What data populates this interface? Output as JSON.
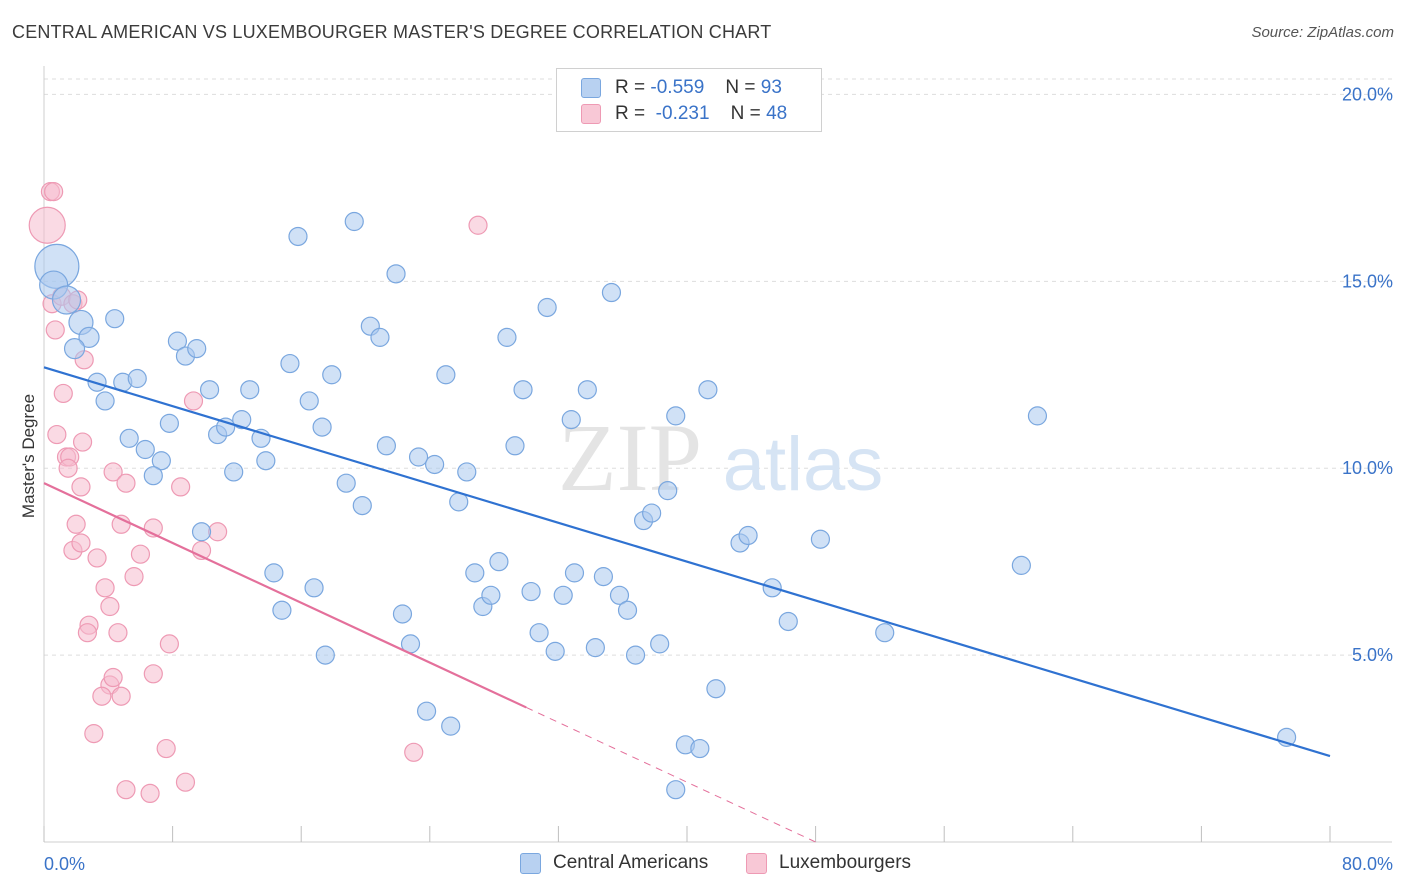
{
  "title": "CENTRAL AMERICAN VS LUXEMBOURGER MASTER'S DEGREE CORRELATION CHART",
  "source": "Source: ZipAtlas.com",
  "watermark": {
    "zip": "ZIP",
    "atlas": "atlas"
  },
  "colors": {
    "blue_fill": "#a9c8ee",
    "blue_stroke": "#7aa7df",
    "blue_line": "#2f72d1",
    "pink_fill": "#f6bccd",
    "pink_stroke": "#ee9ab4",
    "pink_line": "#e4709b",
    "axis_label": "#3a73c8",
    "grid": "#dddddd"
  },
  "legend": {
    "rows": [
      {
        "r_label": "R =",
        "r_value": "-0.559",
        "n_label": "N =",
        "n_value": "93",
        "color": "blue"
      },
      {
        "r_label": "R =",
        "r_value": "-0.231",
        "n_label": "N =",
        "n_value": "48",
        "color": "pink"
      }
    ]
  },
  "bottom_legend": [
    {
      "label": "Central Americans",
      "color": "blue"
    },
    {
      "label": "Luxembourgers",
      "color": "pink"
    }
  ],
  "chart_data": {
    "type": "scatter",
    "ylabel": "Master's Degree",
    "xlim": [
      0,
      80
    ],
    "ylim": [
      0,
      20.6
    ],
    "x_tick_labels": [
      {
        "value": 0,
        "label": "0.0%"
      },
      {
        "value": 80,
        "label": "80.0%"
      }
    ],
    "y_tick_labels": [
      {
        "value": 5,
        "label": "5.0%"
      },
      {
        "value": 10,
        "label": "10.0%"
      },
      {
        "value": 15,
        "label": "15.0%"
      },
      {
        "value": 20,
        "label": "20.0%"
      }
    ],
    "x_minor_ticks": [
      0,
      8,
      16,
      24,
      32,
      40,
      48,
      56,
      64,
      72,
      80
    ],
    "series": [
      {
        "name": "Central Americans",
        "color": "blue",
        "trend": {
          "x0": 0,
          "y0": 12.7,
          "x1": 80,
          "y1": 2.3
        },
        "points": [
          [
            0.8,
            15.4,
            22
          ],
          [
            0.6,
            14.9,
            14
          ],
          [
            1.4,
            14.5,
            14
          ],
          [
            2.3,
            13.9,
            12
          ],
          [
            2.8,
            13.5,
            10
          ],
          [
            1.9,
            13.2,
            10
          ],
          [
            4.4,
            14.0,
            9
          ],
          [
            3.3,
            12.3,
            9
          ],
          [
            4.9,
            12.3,
            9
          ],
          [
            5.8,
            12.4,
            9
          ],
          [
            3.8,
            11.8,
            9
          ],
          [
            5.3,
            10.8,
            9
          ],
          [
            6.3,
            10.5,
            9
          ],
          [
            7.3,
            10.2,
            9
          ],
          [
            6.8,
            9.8,
            9
          ],
          [
            7.8,
            11.2,
            9
          ],
          [
            8.3,
            13.4,
            9
          ],
          [
            8.8,
            13.0,
            9
          ],
          [
            9.5,
            13.2,
            9
          ],
          [
            10.3,
            12.1,
            9
          ],
          [
            10.8,
            10.9,
            9
          ],
          [
            11.3,
            11.1,
            9
          ],
          [
            11.8,
            9.9,
            9
          ],
          [
            12.3,
            11.3,
            9
          ],
          [
            12.8,
            12.1,
            9
          ],
          [
            13.5,
            10.8,
            9
          ],
          [
            13.8,
            10.2,
            9
          ],
          [
            9.8,
            8.3,
            9
          ],
          [
            14.3,
            7.2,
            9
          ],
          [
            14.8,
            6.2,
            9
          ],
          [
            15.3,
            12.8,
            9
          ],
          [
            15.8,
            16.2,
            9
          ],
          [
            16.5,
            11.8,
            9
          ],
          [
            17.3,
            11.1,
            9
          ],
          [
            16.8,
            6.8,
            9
          ],
          [
            17.9,
            12.5,
            9
          ],
          [
            18.8,
            9.6,
            9
          ],
          [
            19.3,
            16.6,
            9
          ],
          [
            19.8,
            9.0,
            9
          ],
          [
            20.3,
            13.8,
            9
          ],
          [
            20.9,
            13.5,
            9
          ],
          [
            21.3,
            10.6,
            9
          ],
          [
            21.9,
            15.2,
            9
          ],
          [
            22.3,
            6.1,
            9
          ],
          [
            22.8,
            5.3,
            9
          ],
          [
            23.3,
            10.3,
            9
          ],
          [
            24.3,
            10.1,
            9
          ],
          [
            25.0,
            12.5,
            9
          ],
          [
            25.8,
            9.1,
            9
          ],
          [
            26.3,
            9.9,
            9
          ],
          [
            26.8,
            7.2,
            9
          ],
          [
            27.3,
            6.3,
            9
          ],
          [
            27.8,
            6.6,
            9
          ],
          [
            28.3,
            7.5,
            9
          ],
          [
            28.8,
            13.5,
            9
          ],
          [
            29.3,
            10.6,
            9
          ],
          [
            29.8,
            12.1,
            9
          ],
          [
            30.3,
            6.7,
            9
          ],
          [
            30.8,
            5.6,
            9
          ],
          [
            31.3,
            14.3,
            9
          ],
          [
            31.8,
            5.1,
            9
          ],
          [
            32.3,
            6.6,
            9
          ],
          [
            32.8,
            11.3,
            9
          ],
          [
            33.0,
            7.2,
            9
          ],
          [
            33.8,
            12.1,
            9
          ],
          [
            34.3,
            5.2,
            9
          ],
          [
            34.8,
            7.1,
            9
          ],
          [
            35.3,
            14.7,
            9
          ],
          [
            35.8,
            6.6,
            9
          ],
          [
            36.3,
            6.2,
            9
          ],
          [
            36.8,
            5.0,
            9
          ],
          [
            37.3,
            8.6,
            9
          ],
          [
            37.8,
            8.8,
            9
          ],
          [
            38.3,
            5.3,
            9
          ],
          [
            38.8,
            9.4,
            9
          ],
          [
            39.3,
            11.4,
            9
          ],
          [
            39.9,
            2.6,
            9
          ],
          [
            40.8,
            2.5,
            9
          ],
          [
            41.3,
            12.1,
            9
          ],
          [
            41.8,
            4.1,
            9
          ],
          [
            43.3,
            8.0,
            9
          ],
          [
            43.8,
            8.2,
            9
          ],
          [
            45.3,
            6.8,
            9
          ],
          [
            46.3,
            5.9,
            9
          ],
          [
            48.3,
            8.1,
            9
          ],
          [
            52.3,
            5.6,
            9
          ],
          [
            60.8,
            7.4,
            9
          ],
          [
            61.8,
            11.4,
            9
          ],
          [
            77.3,
            2.8,
            9
          ],
          [
            39.3,
            1.4,
            9
          ],
          [
            17.5,
            5.0,
            9
          ],
          [
            23.8,
            3.5,
            9
          ],
          [
            25.3,
            3.1,
            9
          ]
        ]
      },
      {
        "name": "Luxembourgers",
        "color": "pink",
        "trend": {
          "x0": 0,
          "y0": 9.6,
          "x1": 30,
          "y1": 3.6,
          "dash_to_x": 48,
          "dash_to_y": 0
        },
        "points": [
          [
            0.2,
            16.5,
            18
          ],
          [
            0.4,
            17.4,
            9
          ],
          [
            0.6,
            17.4,
            9
          ],
          [
            0.5,
            14.4,
            9
          ],
          [
            1.1,
            14.6,
            9
          ],
          [
            1.8,
            14.4,
            9
          ],
          [
            0.7,
            13.7,
            9
          ],
          [
            2.5,
            12.9,
            9
          ],
          [
            1.2,
            12.0,
            9
          ],
          [
            0.8,
            10.9,
            9
          ],
          [
            2.4,
            10.7,
            9
          ],
          [
            1.4,
            10.3,
            9
          ],
          [
            1.6,
            10.3,
            9
          ],
          [
            1.5,
            10.0,
            9
          ],
          [
            4.3,
            9.9,
            9
          ],
          [
            5.1,
            9.6,
            9
          ],
          [
            2.3,
            9.5,
            9
          ],
          [
            8.5,
            9.5,
            9
          ],
          [
            9.3,
            11.8,
            9
          ],
          [
            2.0,
            8.5,
            9
          ],
          [
            4.8,
            8.5,
            9
          ],
          [
            6.8,
            8.4,
            9
          ],
          [
            10.8,
            8.3,
            9
          ],
          [
            1.8,
            7.8,
            9
          ],
          [
            2.3,
            8.0,
            9
          ],
          [
            3.3,
            7.6,
            9
          ],
          [
            6.0,
            7.7,
            9
          ],
          [
            9.8,
            7.8,
            9
          ],
          [
            5.6,
            7.1,
            9
          ],
          [
            3.8,
            6.8,
            9
          ],
          [
            4.1,
            6.3,
            9
          ],
          [
            2.8,
            5.8,
            9
          ],
          [
            2.7,
            5.6,
            9
          ],
          [
            4.6,
            5.6,
            9
          ],
          [
            7.8,
            5.3,
            9
          ],
          [
            6.8,
            4.5,
            9
          ],
          [
            4.1,
            4.2,
            9
          ],
          [
            4.3,
            4.4,
            9
          ],
          [
            3.6,
            3.9,
            9
          ],
          [
            4.8,
            3.9,
            9
          ],
          [
            3.1,
            2.9,
            9
          ],
          [
            7.6,
            2.5,
            9
          ],
          [
            5.1,
            1.4,
            9
          ],
          [
            6.6,
            1.3,
            9
          ],
          [
            8.8,
            1.6,
            9
          ],
          [
            23.0,
            2.4,
            9
          ],
          [
            27.0,
            16.5,
            9
          ],
          [
            2.1,
            14.5,
            9
          ]
        ]
      }
    ]
  }
}
